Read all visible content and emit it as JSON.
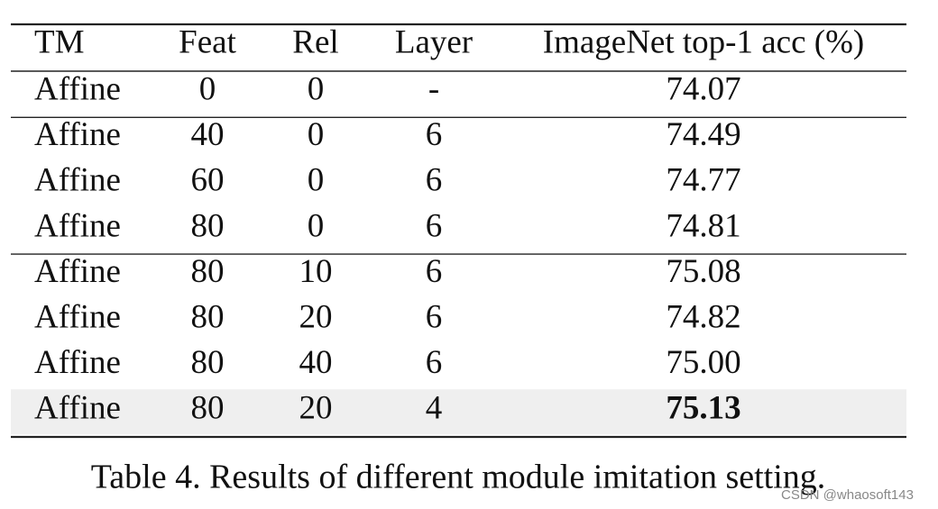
{
  "table": {
    "header": [
      "TM",
      "Feat",
      "Rel",
      "Layer",
      "ImageNet top-1 acc (%)"
    ],
    "groups": [
      [
        [
          "Affine",
          "0",
          "0",
          "-",
          "74.07"
        ]
      ],
      [
        [
          "Affine",
          "40",
          "0",
          "6",
          "74.49"
        ],
        [
          "Affine",
          "60",
          "0",
          "6",
          "74.77"
        ],
        [
          "Affine",
          "80",
          "0",
          "6",
          "74.81"
        ]
      ],
      [
        [
          "Affine",
          "80",
          "10",
          "6",
          "75.08"
        ],
        [
          "Affine",
          "80",
          "20",
          "6",
          "74.82"
        ],
        [
          "Affine",
          "80",
          "40",
          "6",
          "75.00"
        ],
        [
          "Affine",
          "80",
          "20",
          "4",
          "75.13"
        ]
      ]
    ],
    "caption": "Table 4. Results of different module imitation setting."
  },
  "watermark": "CSDN @whaosoft143"
}
